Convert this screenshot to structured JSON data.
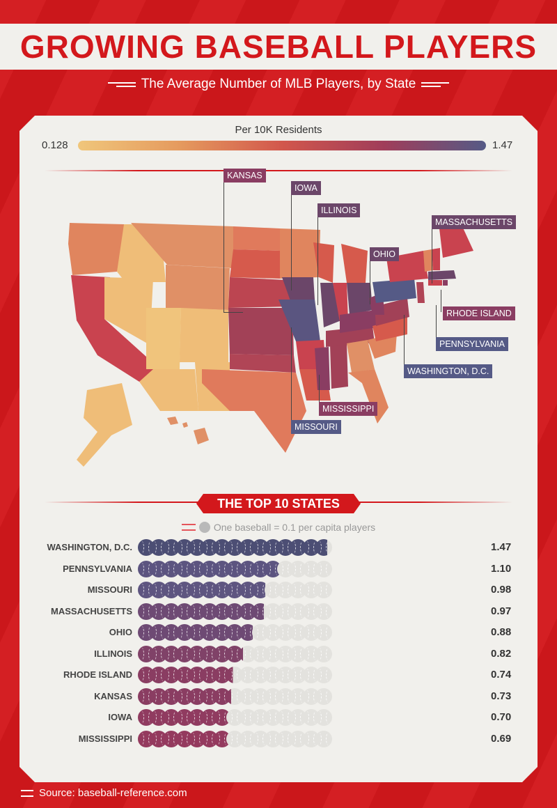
{
  "header": {
    "title": "GROWING BASEBALL PLAYERS",
    "subtitle": "The Average Number of MLB Players, by State"
  },
  "legend": {
    "title": "Per 10K Residents",
    "min_label": "0.128",
    "max_label": "1.47"
  },
  "map": {
    "callouts": [
      {
        "name": "KANSAS",
        "color": "#8a3d62"
      },
      {
        "name": "IOWA",
        "color": "#6b4669"
      },
      {
        "name": "ILLINOIS",
        "color": "#6b4669"
      },
      {
        "name": "MASSACHUSETTS",
        "color": "#6b4669"
      },
      {
        "name": "OHIO",
        "color": "#6b4669"
      },
      {
        "name": "RHODE ISLAND",
        "color": "#8a3d62"
      },
      {
        "name": "PENNSYLVANIA",
        "color": "#555a86"
      },
      {
        "name": "WASHINGTON, D.C.",
        "color": "#555a86"
      },
      {
        "name": "MISSISSIPPI",
        "color": "#8a3d62"
      },
      {
        "name": "MISSOURI",
        "color": "#555a86"
      }
    ]
  },
  "top10": {
    "banner": "THE TOP 10 STATES",
    "key_label": "One baseball = 0.1 per capita players"
  },
  "chart_data": {
    "type": "bar",
    "title": "The Top 10 States",
    "unit_note": "One baseball = 0.1 per capita players",
    "xlim": [
      0,
      1.5
    ],
    "categories": [
      "WASHINGTON, D.C.",
      "PENNSYLVANIA",
      "MISSOURI",
      "MASSACHUSETTS",
      "OHIO",
      "ILLINOIS",
      "RHODE ISLAND",
      "KANSAS",
      "IOWA",
      "MISSISSIPPI"
    ],
    "values": [
      1.47,
      1.1,
      0.98,
      0.97,
      0.88,
      0.82,
      0.74,
      0.73,
      0.7,
      0.69
    ],
    "value_labels": [
      "1.47",
      "1.10",
      "0.98",
      "0.97",
      "0.88",
      "0.82",
      "0.74",
      "0.73",
      "0.70",
      "0.69"
    ],
    "colors": [
      "#4c4e74",
      "#5c5480",
      "#5e5580",
      "#6e4a74",
      "#6e4a74",
      "#804268",
      "#8a3d62",
      "#8a3d62",
      "#903b60",
      "#943a5e"
    ]
  },
  "footer": {
    "source": "Source: baseball-reference.com"
  }
}
